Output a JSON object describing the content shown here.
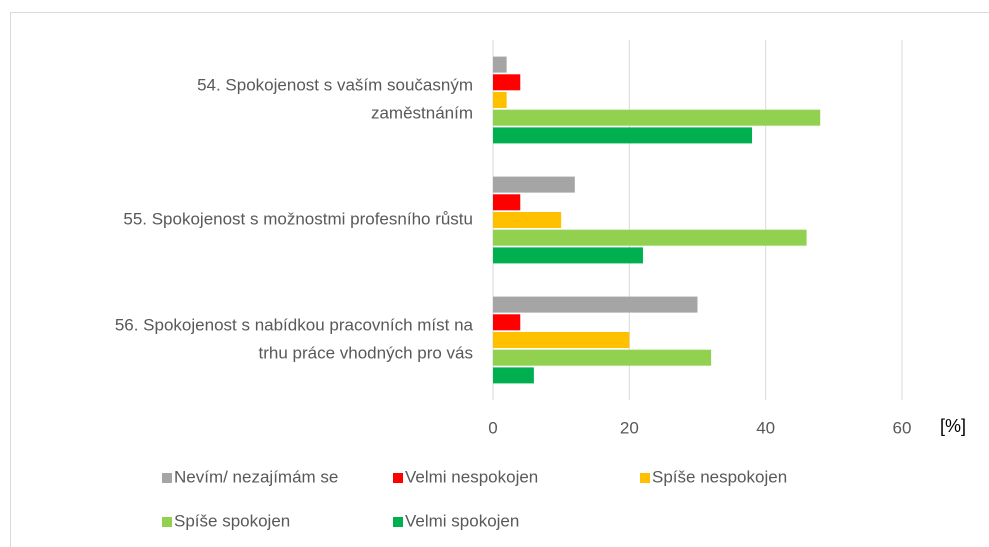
{
  "chart_data": {
    "type": "hbar",
    "categories": [
      [
        "54. Spokojenost s vaším současným",
        "zaměstnáním"
      ],
      [
        "55. Spokojenost s možnostmi profesního růstu"
      ],
      [
        "56. Spokojenost s nabídkou pracovních míst na",
        "trhu práce vhodných pro vás"
      ]
    ],
    "series": [
      {
        "name": "Nevím/ nezajímám se",
        "color": "#a5a5a5",
        "values": [
          2,
          12,
          30
        ]
      },
      {
        "name": "Velmi nespokojen",
        "color": "#ff0000",
        "values": [
          4,
          4,
          4
        ]
      },
      {
        "name": "Spíše nespokojen",
        "color": "#ffc000",
        "values": [
          2,
          10,
          20
        ]
      },
      {
        "name": "Spíše spokojen",
        "color": "#92d050",
        "values": [
          48,
          46,
          32
        ]
      },
      {
        "name": "Velmi spokojen",
        "color": "#00b050",
        "values": [
          38,
          22,
          6
        ]
      }
    ],
    "x_label": "[%]",
    "xlim": [
      0,
      60
    ],
    "xticks": [
      0,
      20,
      40,
      60
    ],
    "grid": true
  }
}
